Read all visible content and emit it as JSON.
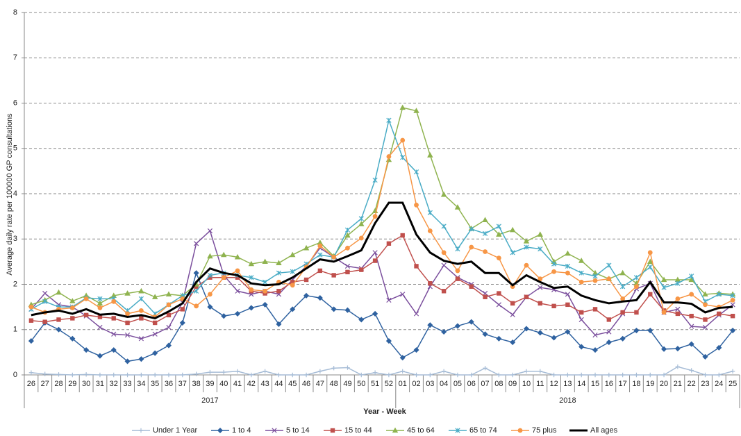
{
  "chart_data": {
    "type": "line",
    "y_label": "Average daily rate per 100000 GP consultations",
    "x_label": "Year - Week",
    "categories": [
      "26",
      "27",
      "28",
      "29",
      "30",
      "31",
      "32",
      "33",
      "34",
      "35",
      "36",
      "37",
      "38",
      "39",
      "40",
      "41",
      "42",
      "43",
      "44",
      "45",
      "46",
      "47",
      "48",
      "49",
      "50",
      "51",
      "52",
      "01",
      "02",
      "03",
      "04",
      "05",
      "06",
      "07",
      "08",
      "09",
      "10",
      "11",
      "12",
      "13",
      "14",
      "15",
      "16",
      "17",
      "18",
      "19",
      "20",
      "21",
      "22",
      "23",
      "24",
      "25"
    ],
    "groups": [
      "2017",
      "2018"
    ],
    "ylim": [
      0,
      8
    ],
    "yticks": [
      0,
      1,
      2,
      3,
      4,
      5,
      6,
      7,
      8
    ],
    "grid": true,
    "legend": "bottom",
    "series": [
      {
        "name": "Under 1 Year",
        "color": "#a6bcd6",
        "marker": "plus",
        "values": [
          0.05,
          0.02,
          0.01,
          0,
          0.01,
          0,
          0,
          0,
          0,
          0,
          0,
          0,
          0.02,
          0.06,
          0.06,
          0.08,
          0,
          0.08,
          0,
          0,
          0,
          0.08,
          0.15,
          0.16,
          0,
          0.05,
          0,
          0.08,
          0,
          0,
          0.08,
          0,
          0,
          0.15,
          0,
          0,
          0.08,
          0.08,
          0,
          0,
          0,
          0,
          0,
          0,
          0,
          0,
          0,
          0.18,
          0.1,
          0,
          0,
          0.08
        ]
      },
      {
        "name": "1 to 4",
        "color": "#2f62a0",
        "marker": "diamond",
        "values": [
          0.75,
          1.15,
          1.0,
          0.8,
          0.55,
          0.42,
          0.55,
          0.3,
          0.35,
          0.48,
          0.65,
          1.15,
          2.25,
          1.5,
          1.3,
          1.35,
          1.48,
          1.55,
          1.12,
          1.45,
          1.75,
          1.7,
          1.45,
          1.43,
          1.22,
          1.35,
          0.75,
          0.38,
          0.55,
          1.1,
          0.95,
          1.08,
          1.17,
          0.9,
          0.8,
          0.72,
          1.02,
          0.93,
          0.82,
          0.95,
          0.62,
          0.55,
          0.72,
          0.8,
          0.98,
          0.98,
          0.57,
          0.58,
          0.68,
          0.4,
          0.6,
          0.98
        ]
      },
      {
        "name": "5 to 14",
        "color": "#7b4f9d",
        "marker": "x",
        "values": [
          1.45,
          1.8,
          1.55,
          1.5,
          1.3,
          1.05,
          0.9,
          0.88,
          0.8,
          0.9,
          1.05,
          1.6,
          2.9,
          3.18,
          2.2,
          1.85,
          1.78,
          1.85,
          1.78,
          2.1,
          2.4,
          2.8,
          2.6,
          2.4,
          2.35,
          2.7,
          1.65,
          1.78,
          1.35,
          1.95,
          2.42,
          2.15,
          2.0,
          1.8,
          1.55,
          1.33,
          1.72,
          1.93,
          1.88,
          1.78,
          1.22,
          0.88,
          0.95,
          1.35,
          1.9,
          2.02,
          1.38,
          1.45,
          1.07,
          1.05,
          1.32,
          1.55
        ]
      },
      {
        "name": "15 to 44",
        "color": "#c0504d",
        "marker": "square",
        "values": [
          1.2,
          1.17,
          1.22,
          1.25,
          1.32,
          1.28,
          1.25,
          1.15,
          1.25,
          1.15,
          1.32,
          1.45,
          1.95,
          2.15,
          2.15,
          2.15,
          1.85,
          1.8,
          1.85,
          2.05,
          2.1,
          2.3,
          2.2,
          2.27,
          2.32,
          2.52,
          2.9,
          3.08,
          2.4,
          2.02,
          1.85,
          2.12,
          1.95,
          1.72,
          1.8,
          1.58,
          1.72,
          1.58,
          1.52,
          1.55,
          1.38,
          1.45,
          1.22,
          1.38,
          1.38,
          1.78,
          1.42,
          1.35,
          1.3,
          1.22,
          1.35,
          1.3
        ]
      },
      {
        "name": "45 to 64",
        "color": "#8fb34f",
        "marker": "triangle",
        "values": [
          1.55,
          1.65,
          1.82,
          1.63,
          1.75,
          1.58,
          1.75,
          1.8,
          1.85,
          1.72,
          1.78,
          1.75,
          2.0,
          2.62,
          2.65,
          2.6,
          2.45,
          2.5,
          2.47,
          2.65,
          2.8,
          2.92,
          2.62,
          3.08,
          3.33,
          3.62,
          4.75,
          5.9,
          5.83,
          4.85,
          3.98,
          3.7,
          3.23,
          3.42,
          3.1,
          3.2,
          2.95,
          3.1,
          2.5,
          2.68,
          2.52,
          2.25,
          2.12,
          2.25,
          2.02,
          2.5,
          2.1,
          2.1,
          2.1,
          1.78,
          1.8,
          1.78
        ]
      },
      {
        "name": "65 to 74",
        "color": "#4aacc6",
        "marker": "star",
        "values": [
          1.45,
          1.62,
          1.5,
          1.5,
          1.7,
          1.68,
          1.68,
          1.42,
          1.68,
          1.35,
          1.55,
          1.75,
          1.85,
          2.2,
          2.25,
          2.2,
          2.15,
          2.05,
          2.25,
          2.28,
          2.45,
          2.65,
          2.6,
          3.2,
          3.45,
          4.3,
          5.62,
          4.8,
          4.48,
          3.58,
          3.28,
          2.78,
          3.22,
          3.12,
          3.28,
          2.7,
          2.82,
          2.78,
          2.45,
          2.4,
          2.25,
          2.18,
          2.42,
          1.95,
          2.15,
          2.38,
          1.93,
          2.02,
          2.18,
          1.62,
          1.78,
          1.75
        ]
      },
      {
        "name": "75 plus",
        "color": "#f79646",
        "marker": "circle",
        "values": [
          1.5,
          1.38,
          1.45,
          1.48,
          1.68,
          1.48,
          1.62,
          1.35,
          1.42,
          1.28,
          1.55,
          1.68,
          1.52,
          1.78,
          2.15,
          2.3,
          1.88,
          1.85,
          2.05,
          1.98,
          2.38,
          2.85,
          2.6,
          2.8,
          3.02,
          3.5,
          4.82,
          5.18,
          3.75,
          3.18,
          2.7,
          2.3,
          2.82,
          2.72,
          2.58,
          1.95,
          2.42,
          2.12,
          2.28,
          2.25,
          2.05,
          2.08,
          2.12,
          1.68,
          1.95,
          2.7,
          1.38,
          1.68,
          1.78,
          1.55,
          1.5,
          1.65
        ]
      },
      {
        "name": "All ages",
        "color": "#000000",
        "values": [
          1.32,
          1.38,
          1.42,
          1.35,
          1.45,
          1.33,
          1.35,
          1.28,
          1.32,
          1.25,
          1.4,
          1.58,
          2.05,
          2.35,
          2.25,
          2.2,
          2.02,
          1.98,
          2.0,
          2.15,
          2.35,
          2.55,
          2.5,
          2.62,
          2.75,
          3.35,
          3.8,
          3.8,
          3.1,
          2.7,
          2.52,
          2.45,
          2.5,
          2.25,
          2.25,
          1.98,
          2.2,
          2.05,
          1.92,
          1.95,
          1.75,
          1.65,
          1.58,
          1.62,
          1.65,
          2.05,
          1.6,
          1.6,
          1.57,
          1.38,
          1.48,
          1.5
        ]
      }
    ]
  }
}
